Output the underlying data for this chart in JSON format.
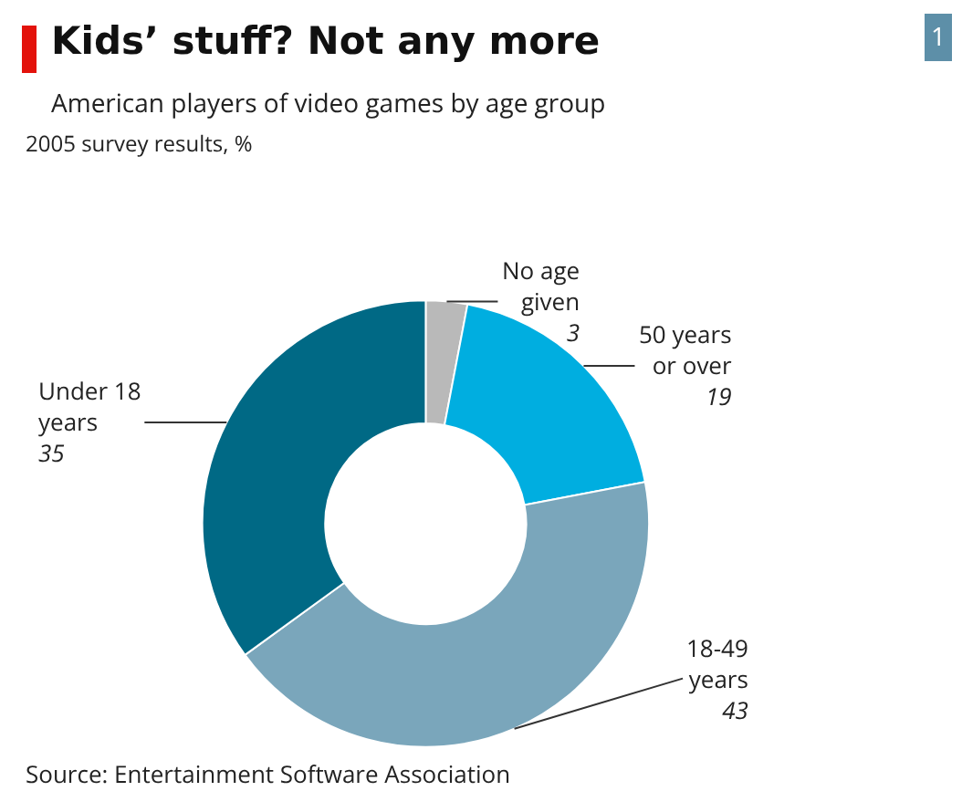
{
  "chart_data": {
    "type": "donut",
    "title": "Kids’ stuff? Not any more",
    "subtitle": "American players of video games by age group",
    "categories": [
      "No age given",
      "50 years or over",
      "18-49 years",
      "Under 18 years"
    ],
    "values": [
      3,
      19,
      43,
      35
    ],
    "colors": [
      "#b9b9b9",
      "#00aee0",
      "#7aa6bb",
      "#006985"
    ],
    "data_labels": true,
    "legend": false,
    "annotations": [
      "2005 survey results, %",
      "Source: Entertainment Software Association",
      "1"
    ]
  }
}
